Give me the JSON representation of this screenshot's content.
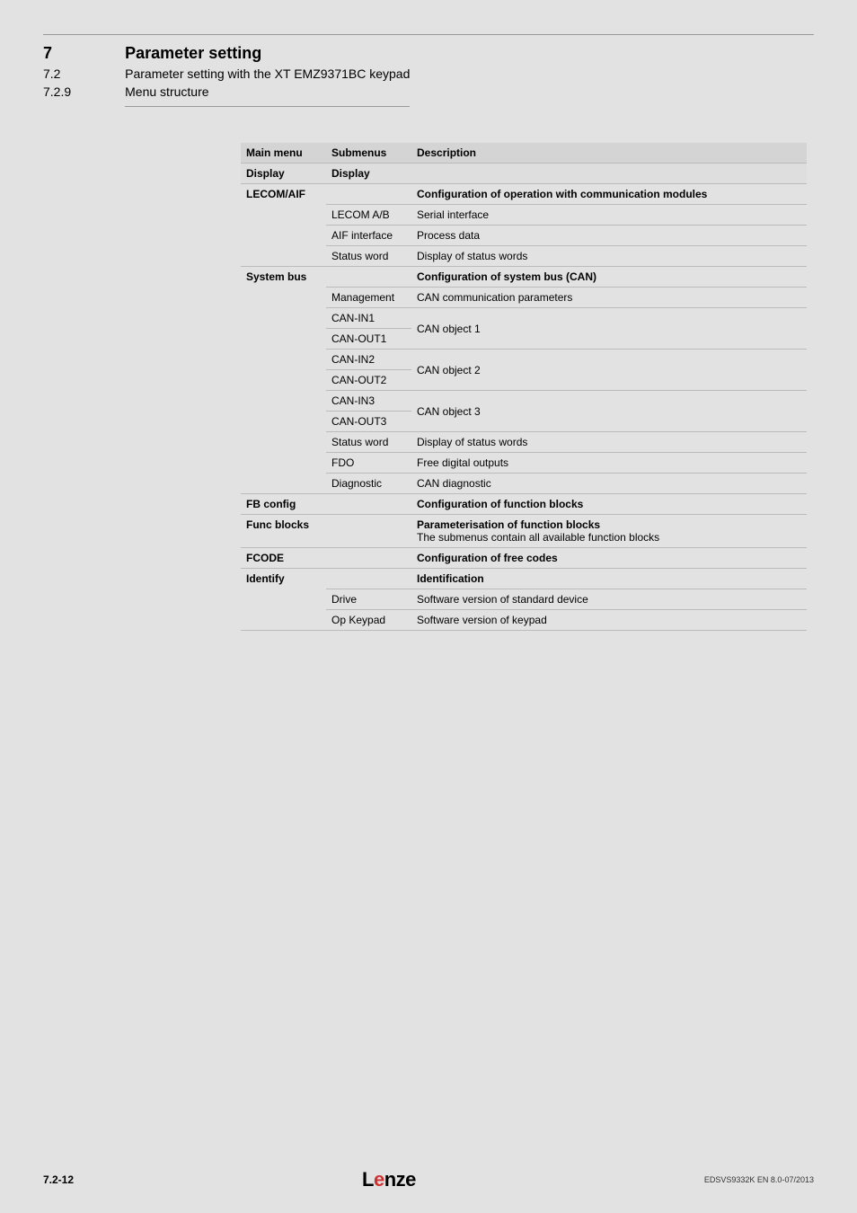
{
  "header": {
    "section_num": "7",
    "subsection_num": "7.2",
    "subsub_num": "7.2.9",
    "section_title": "Parameter setting",
    "subsection_title": "Parameter setting with the XT EMZ9371BC keypad",
    "subsub_title": "Menu structure"
  },
  "table": {
    "head": {
      "c1": "Main menu",
      "c2": "Submenus",
      "c3": "Description"
    },
    "sub": {
      "c1": "Display",
      "c2": "Display",
      "c3": ""
    },
    "rows": [
      {
        "c1": "LECOM/AIF",
        "c1_bold": true,
        "c2": "",
        "c3": "Configuration of operation with communication modules",
        "c3_bold": true
      },
      {
        "c1": "",
        "c2": "LECOM A/B",
        "c3": "Serial interface"
      },
      {
        "c1": "",
        "c2": "AIF interface",
        "c3": "Process data"
      },
      {
        "c1": "",
        "c2": "Status word",
        "c3": "Display of status words"
      },
      {
        "c1": "System bus",
        "c1_bold": true,
        "c2": "",
        "c3": "Configuration of system bus (CAN)",
        "c3_bold": true
      },
      {
        "c1": "",
        "c2": "Management",
        "c3": "CAN communication parameters"
      },
      {
        "c1": "",
        "c2": "CAN-IN1",
        "c3_merge_start": true,
        "c3": "CAN object 1"
      },
      {
        "c1": "",
        "c2": "CAN-OUT1",
        "c3_merge_end": true
      },
      {
        "c1": "",
        "c2": "CAN-IN2",
        "c3_merge_start": true,
        "c3": "CAN object 2"
      },
      {
        "c1": "",
        "c2": "CAN-OUT2",
        "c3_merge_end": true
      },
      {
        "c1": "",
        "c2": "CAN-IN3",
        "c3_merge_start": true,
        "c3": "CAN object 3"
      },
      {
        "c1": "",
        "c2": "CAN-OUT3",
        "c3_merge_end": true
      },
      {
        "c1": "",
        "c2": "Status word",
        "c3": "Display of status words"
      },
      {
        "c1": "",
        "c2": "FDO",
        "c3": "Free digital outputs"
      },
      {
        "c1": "",
        "c2": "Diagnostic",
        "c3": "CAN diagnostic"
      },
      {
        "c1": "FB config",
        "c1_bold": true,
        "c2": "",
        "c3": "Configuration of function blocks",
        "c3_bold": true
      },
      {
        "c1": "Func blocks",
        "c1_bold": true,
        "c2": "",
        "c3_html": true,
        "c3_bold_part": "Parameterisation of function blocks",
        "c3_rest": "The submenus contain all available function blocks"
      },
      {
        "c1": "FCODE",
        "c1_bold": true,
        "c2": "",
        "c3": "Configuration of free codes",
        "c3_bold": true
      },
      {
        "c1": "Identify",
        "c1_bold": true,
        "c2": "",
        "c3": "Identification",
        "c3_bold": true
      },
      {
        "c1": "",
        "c2": "Drive",
        "c3": "Software version of standard device"
      },
      {
        "c1": "",
        "c2": "Op Keypad",
        "c3": "Software version of keypad"
      }
    ]
  },
  "footer": {
    "page": "7.2-12",
    "logo": "Lenze",
    "doc": "EDSVS9332K  EN  8.0-07/2013"
  }
}
